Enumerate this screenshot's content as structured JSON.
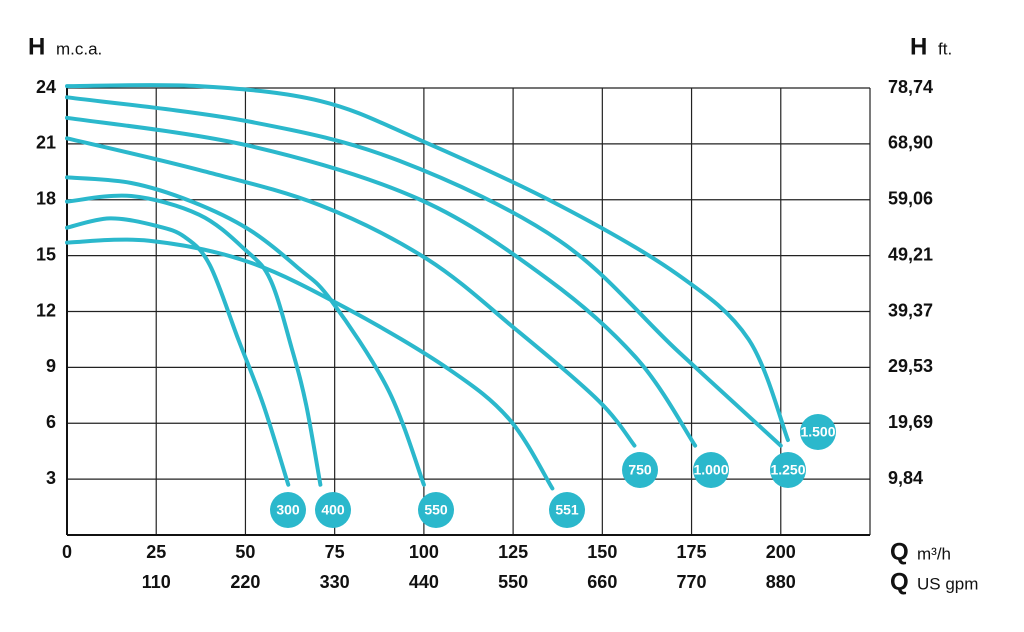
{
  "chart_data": {
    "type": "line",
    "y_label": "H",
    "y_unit": "m.c.a.",
    "y2_label": "H",
    "y2_unit": "ft.",
    "x_label": "Q",
    "x_unit": "m³/h",
    "x2_label": "Q",
    "x2_unit": "US gpm",
    "xlim": [
      0,
      225
    ],
    "xticks": [
      0,
      25,
      50,
      75,
      100,
      125,
      150,
      175,
      200
    ],
    "x2lim": [
      0,
      990
    ],
    "x2ticks": [
      110,
      220,
      330,
      440,
      550,
      660,
      770,
      880
    ],
    "ylim": [
      0,
      24
    ],
    "yticks": [
      3,
      6,
      9,
      12,
      15,
      18,
      21,
      24
    ],
    "y2lim": [
      0,
      78.74
    ],
    "y2ticks": [
      {
        "value": 9.84,
        "label": "9,84"
      },
      {
        "value": 19.69,
        "label": "19,69"
      },
      {
        "value": 29.53,
        "label": "29,53"
      },
      {
        "value": 39.37,
        "label": "39,37"
      },
      {
        "value": 49.21,
        "label": "49,21"
      },
      {
        "value": 59.06,
        "label": "59,06"
      },
      {
        "value": 68.9,
        "label": "68,90"
      },
      {
        "value": 78.74,
        "label": "78,74"
      }
    ],
    "grid": true,
    "series": [
      {
        "name": "300",
        "color": "#2bb8cc",
        "x": [
          0,
          12,
          25,
          33,
          40,
          48,
          55,
          62
        ],
        "values": [
          16.5,
          17.0,
          16.6,
          16.0,
          14.5,
          10.5,
          7.0,
          2.7
        ]
      },
      {
        "name": "400",
        "color": "#2bb8cc",
        "x": [
          0,
          18,
          37,
          50,
          57,
          63,
          67,
          71
        ],
        "values": [
          17.9,
          18.2,
          17.2,
          15.3,
          13.7,
          10.0,
          7.0,
          2.7
        ]
      },
      {
        "name": "550",
        "color": "#2bb8cc",
        "x": [
          0,
          18,
          35,
          51,
          65,
          74,
          90,
          100
        ],
        "values": [
          19.2,
          18.9,
          17.9,
          16.4,
          14.3,
          12.6,
          7.8,
          2.7
        ]
      },
      {
        "name": "551",
        "color": "#2bb8cc",
        "x": [
          0,
          23,
          51,
          79,
          107,
          124,
          136
        ],
        "values": [
          15.7,
          15.8,
          14.65,
          12.1,
          8.9,
          6.2,
          2.5
        ]
      },
      {
        "name": "750",
        "color": "#2bb8cc",
        "x": [
          0,
          37,
          71,
          101,
          126,
          149,
          159
        ],
        "values": [
          21.3,
          19.6,
          17.7,
          14.8,
          11.0,
          7.2,
          4.8
        ]
      },
      {
        "name": "1.000",
        "color": "#2bb8cc",
        "x": [
          0,
          51,
          99,
          135,
          160,
          176
        ],
        "values": [
          22.4,
          20.9,
          18.0,
          13.7,
          9.4,
          4.8
        ]
      },
      {
        "name": "1.250",
        "color": "#2bb8cc",
        "x": [
          0,
          51,
          93,
          138,
          171,
          200
        ],
        "values": [
          23.5,
          22.2,
          20.1,
          15.8,
          9.9,
          4.8
        ]
      },
      {
        "name": "1.500",
        "color": "#2bb8cc",
        "x": [
          0,
          37,
          71,
          99,
          138,
          171,
          191,
          202
        ],
        "values": [
          24.1,
          24.1,
          23.3,
          21.2,
          17.7,
          14.0,
          10.5,
          5.1
        ]
      }
    ]
  }
}
